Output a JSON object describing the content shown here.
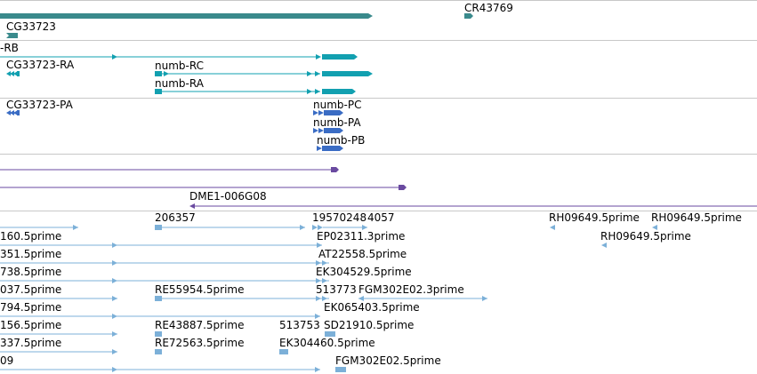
{
  "colors": {
    "gene": "#3a8a8c",
    "transcript_teal": "#12a0b0",
    "transcript_blue": "#3a6cc4",
    "purple": "#6a4aa0",
    "est": "#7cb0d8",
    "separator": "#c8c8c8"
  },
  "tracks": {
    "genes": {
      "labels": [
        "CR43769",
        "CG33723"
      ]
    },
    "transcripts": {
      "labels": [
        "-RB",
        "CG33723-RA",
        "numb-RC",
        "numb-RA"
      ]
    },
    "proteins": {
      "labels": [
        "CG33723-PA",
        "numb-PC",
        "numb-PA",
        "numb-PB"
      ]
    },
    "clones": {
      "labels": [
        "DME1-006G08"
      ]
    },
    "ests": {
      "labels": [
        "206357",
        "19570248",
        "4057",
        "RH09649.5prime",
        "RH09649.5prime",
        "160.5prime",
        "EP02311.3prime",
        "RH09649.5prime",
        "351.5prime",
        "AT22558.5prime",
        "738.5prime",
        "EK304529.5prime",
        "037.5prime",
        "RE55954.5prime",
        "513773",
        "FGM302E02.3prime",
        "794.5prime",
        "EK065403.5prime",
        "156.5prime",
        "RE43887.5prime",
        "513753",
        "SD21910.5prime",
        "337.5prime",
        "RE72563.5prime",
        "EK304460.5prime",
        "09",
        "FGM302E02.5prime"
      ]
    }
  }
}
